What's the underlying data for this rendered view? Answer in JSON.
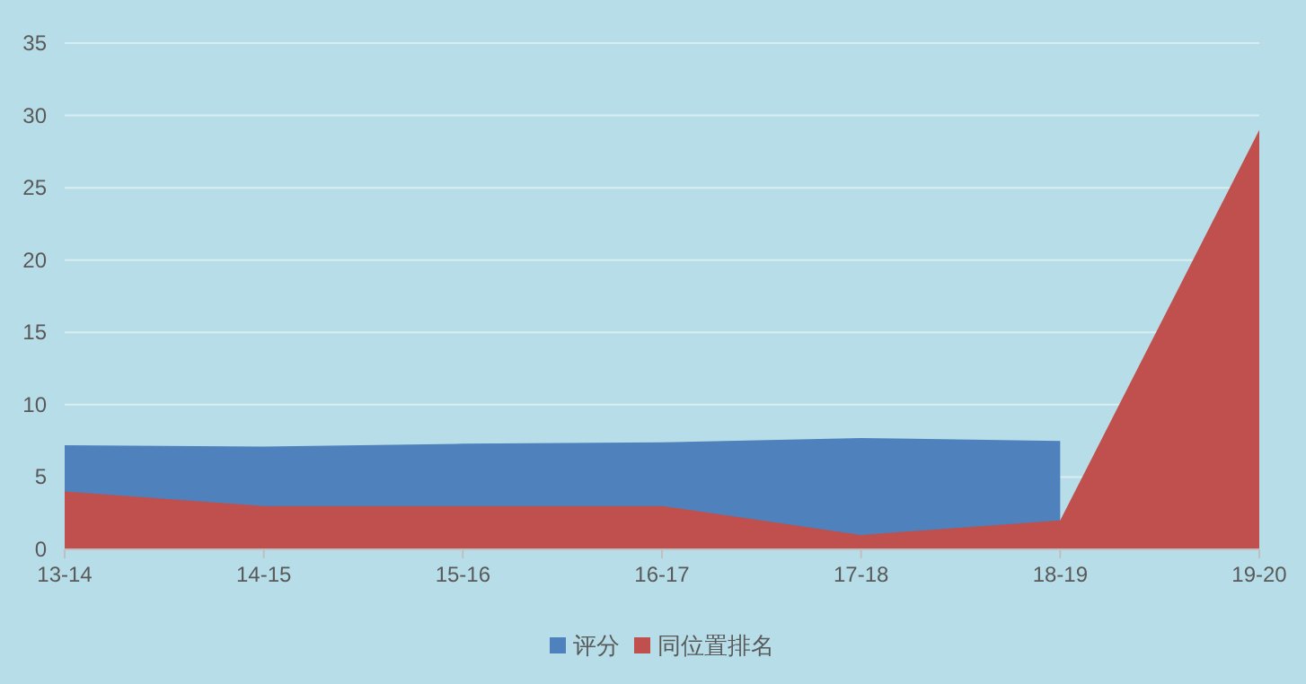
{
  "chart_data": {
    "type": "area",
    "categories": [
      "13-14",
      "14-15",
      "15-16",
      "16-17",
      "17-18",
      "18-19",
      "19-20"
    ],
    "series": [
      {
        "name": "评分",
        "color": "#4f81bd",
        "values": [
          7.2,
          7.1,
          7.3,
          7.4,
          7.7,
          7.5,
          null
        ]
      },
      {
        "name": "同位置排名",
        "color": "#c0504d",
        "values": [
          4,
          3,
          3,
          3,
          1,
          2,
          29
        ]
      }
    ],
    "ylim": [
      0,
      35
    ],
    "yticks": [
      0,
      5,
      10,
      15,
      20,
      25,
      30,
      35
    ],
    "grid": "y",
    "legend": "bottom"
  }
}
